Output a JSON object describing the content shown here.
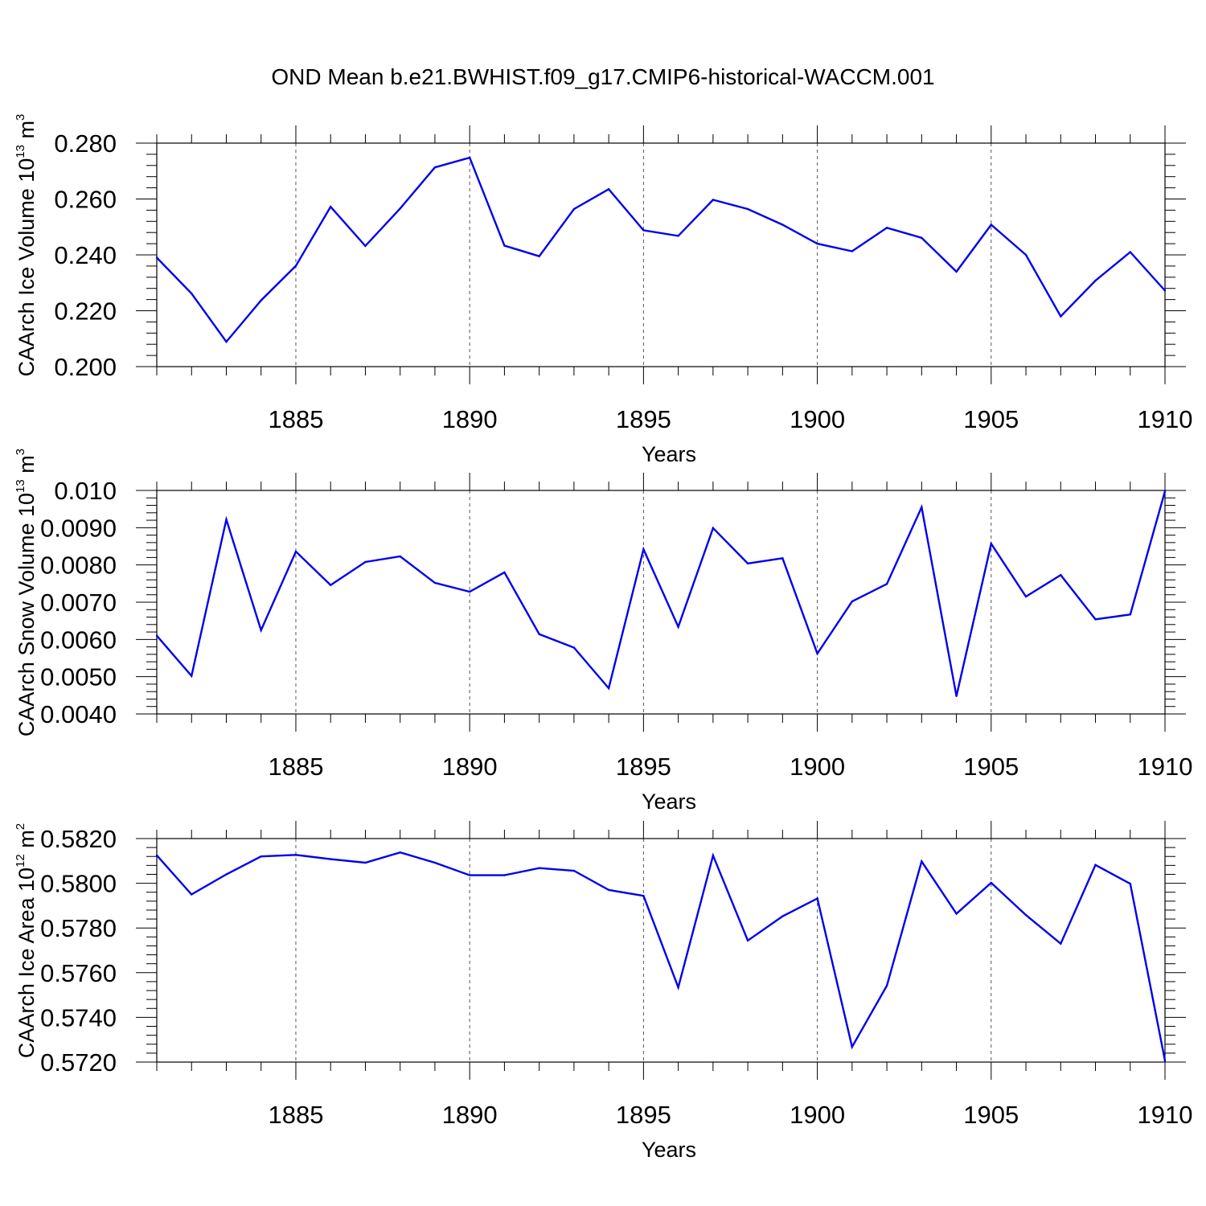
{
  "title": "OND Mean b.e21.BWHIST.f09_g17.CMIP6-historical-WACCM.001",
  "chart_data": [
    {
      "type": "line",
      "ylabel": {
        "base": "CAArch Ice Volume 10",
        "exp": "13",
        "unit": " m",
        "unit_exp": "3"
      },
      "xlabel": "Years",
      "xlim": [
        1881,
        1910
      ],
      "ylim": [
        0.2,
        0.28
      ],
      "xticks": [
        1885,
        1890,
        1895,
        1900,
        1905,
        1910
      ],
      "yticks": [
        "0.200",
        "0.220",
        "0.240",
        "0.260",
        "0.280"
      ],
      "line_color": "#0000ee",
      "series": [
        {
          "x": [
            1881,
            1882,
            1883,
            1884,
            1885,
            1886,
            1887,
            1888,
            1889,
            1890,
            1891,
            1892,
            1893,
            1894,
            1895,
            1896,
            1897,
            1898,
            1899,
            1900,
            1901,
            1902,
            1903,
            1904,
            1905,
            1906,
            1907,
            1908,
            1909,
            1910
          ],
          "values": [
            0.239,
            0.2262,
            0.2089,
            0.2237,
            0.2361,
            0.2572,
            0.2432,
            0.2566,
            0.2713,
            0.2748,
            0.2433,
            0.2395,
            0.2564,
            0.2635,
            0.2488,
            0.2468,
            0.2597,
            0.2564,
            0.2508,
            0.244,
            0.2413,
            0.2497,
            0.2461,
            0.234,
            0.2508,
            0.24,
            0.218,
            0.2308,
            0.241,
            0.2272
          ]
        }
      ]
    },
    {
      "type": "line",
      "ylabel": {
        "base": "CAArch Snow Volume 10",
        "exp": "13",
        "unit": " m",
        "unit_exp": "3"
      },
      "xlabel": "Years",
      "xlim": [
        1881,
        1910
      ],
      "ylim": [
        0.004,
        0.01
      ],
      "xticks": [
        1885,
        1890,
        1895,
        1900,
        1905,
        1910
      ],
      "yticks": [
        "0.0040",
        "0.0050",
        "0.0060",
        "0.0070",
        "0.0080",
        "0.0090",
        "0.010"
      ],
      "line_color": "#0000ee",
      "series": [
        {
          "x": [
            1881,
            1882,
            1883,
            1884,
            1885,
            1886,
            1887,
            1888,
            1889,
            1890,
            1891,
            1892,
            1893,
            1894,
            1895,
            1896,
            1897,
            1898,
            1899,
            1900,
            1901,
            1902,
            1903,
            1904,
            1905,
            1906,
            1907,
            1908,
            1909,
            1910
          ],
          "values": [
            0.0061,
            0.00502,
            0.00922,
            0.00625,
            0.00836,
            0.00746,
            0.00808,
            0.00823,
            0.00752,
            0.00728,
            0.0078,
            0.00614,
            0.00578,
            0.00469,
            0.00842,
            0.00634,
            0.00899,
            0.00804,
            0.00818,
            0.00562,
            0.00702,
            0.00749,
            0.00955,
            0.00448,
            0.00857,
            0.00715,
            0.00773,
            0.00654,
            0.00667,
            0.00998
          ]
        }
      ]
    },
    {
      "type": "line",
      "ylabel": {
        "base": "CAArch Ice Area 10",
        "exp": "12",
        "unit": " m",
        "unit_exp": "2"
      },
      "xlabel": "Years",
      "xlim": [
        1881,
        1910
      ],
      "ylim": [
        0.572,
        0.582
      ],
      "xticks": [
        1885,
        1890,
        1895,
        1900,
        1905,
        1910
      ],
      "yticks": [
        "0.5720",
        "0.5740",
        "0.5760",
        "0.5780",
        "0.5800",
        "0.5820"
      ],
      "line_color": "#0000ee",
      "series": [
        {
          "x": [
            1881,
            1882,
            1883,
            1884,
            1885,
            1886,
            1887,
            1888,
            1889,
            1890,
            1891,
            1892,
            1893,
            1894,
            1895,
            1896,
            1897,
            1898,
            1899,
            1900,
            1901,
            1902,
            1903,
            1904,
            1905,
            1906,
            1907,
            1908,
            1909,
            1910
          ],
          "values": [
            0.58125,
            0.5795,
            0.5804,
            0.5812,
            0.58127,
            0.58108,
            0.58092,
            0.58138,
            0.58092,
            0.58036,
            0.58036,
            0.58068,
            0.58056,
            0.5797,
            0.57944,
            0.57534,
            0.58124,
            0.57744,
            0.57852,
            0.57932,
            0.57268,
            0.57542,
            0.58098,
            0.57864,
            0.58002,
            0.57858,
            0.5773,
            0.58082,
            0.57998,
            0.57206
          ]
        }
      ]
    }
  ]
}
